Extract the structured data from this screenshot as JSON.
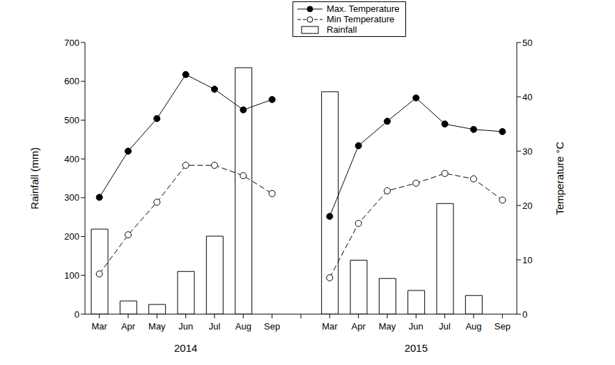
{
  "chart_data": {
    "type": "bar",
    "categories": [
      "Mar",
      "Apr",
      "May",
      "Jun",
      "Jul",
      "Aug",
      "Sep",
      null,
      "Mar",
      "Apr",
      "May",
      "Jun",
      "Jul",
      "Aug",
      "Sep"
    ],
    "x_groups": [
      {
        "label": "2014",
        "span": [
          0,
          6
        ]
      },
      {
        "label": "2015",
        "span": [
          8,
          14
        ]
      }
    ],
    "y_label": "Rainfall (mm)",
    "y2_label": "Temperature °C",
    "ylim": [
      0,
      700
    ],
    "yticks": [
      0,
      100,
      200,
      300,
      400,
      500,
      600,
      700
    ],
    "y2lim": [
      0,
      50
    ],
    "y2ticks": [
      0,
      10,
      20,
      30,
      40,
      50
    ],
    "legend": "top",
    "series": [
      {
        "name": "Max. Temperature",
        "type": "line",
        "axis": "y2",
        "color": "#000000",
        "marker": "filled_circle",
        "line_style": "solid",
        "values": [
          21.5,
          30,
          36,
          44.1,
          41.4,
          37.6,
          39.5,
          null,
          18,
          31,
          35.5,
          39.8,
          35,
          34,
          33.6
        ]
      },
      {
        "name": "Min Temperature",
        "type": "line",
        "axis": "y2",
        "color": "#000000",
        "marker": "open_circle",
        "line_style": "dashed",
        "values": [
          7.4,
          14.6,
          20.6,
          27.4,
          27.4,
          25.5,
          22.2,
          null,
          6.7,
          16.7,
          22.7,
          24.1,
          25.9,
          24.9,
          21
        ]
      },
      {
        "name": "Rainfall",
        "type": "bar",
        "color": "#ffffff",
        "values": [
          219,
          34,
          25,
          110,
          201,
          635,
          0,
          null,
          573,
          139,
          92,
          61,
          285,
          48,
          0
        ]
      }
    ]
  }
}
